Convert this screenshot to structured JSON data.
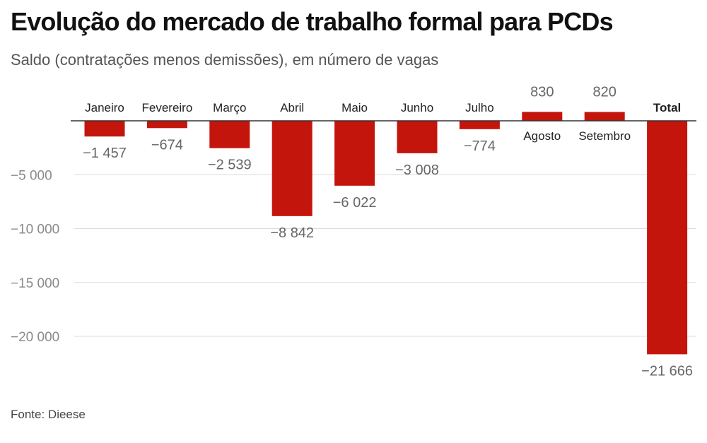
{
  "title": "Evolução do mercado de trabalho formal para PCDs",
  "subtitle": "Saldo (contratações menos demissões), em número de vagas",
  "source": "Fonte: Dieese",
  "colors": {
    "bar": "#c4150d",
    "grid": "#dcdcdc",
    "zero": "#333333",
    "tick": "#8a8a8a",
    "value": "#666666",
    "category": "#222222"
  },
  "chart_data": {
    "type": "bar",
    "title": "Evolução do mercado de trabalho formal para PCDs",
    "subtitle": "Saldo (contratações menos demissões), em número de vagas",
    "categories": [
      "Janeiro",
      "Fevereiro",
      "Março",
      "Abril",
      "Maio",
      "Junho",
      "Julho",
      "Agosto",
      "Setembro",
      "Total"
    ],
    "values": [
      -1457,
      -674,
      -2539,
      -8842,
      -6022,
      -3008,
      -774,
      830,
      820,
      -21666
    ],
    "value_labels": [
      "−1 457",
      "−674",
      "−2 539",
      "−8 842",
      "−6 022",
      "−3 008",
      "−774",
      "830",
      "820",
      "−21 666"
    ],
    "bold_categories": [
      "Total"
    ],
    "yticks": [
      -5000,
      -10000,
      -15000,
      -20000
    ],
    "ytick_labels": [
      "−5 000",
      "−10 000",
      "−15 000",
      "−20 000"
    ],
    "ylim": [
      -22000,
      1000
    ],
    "grid": true,
    "legend": "none"
  }
}
